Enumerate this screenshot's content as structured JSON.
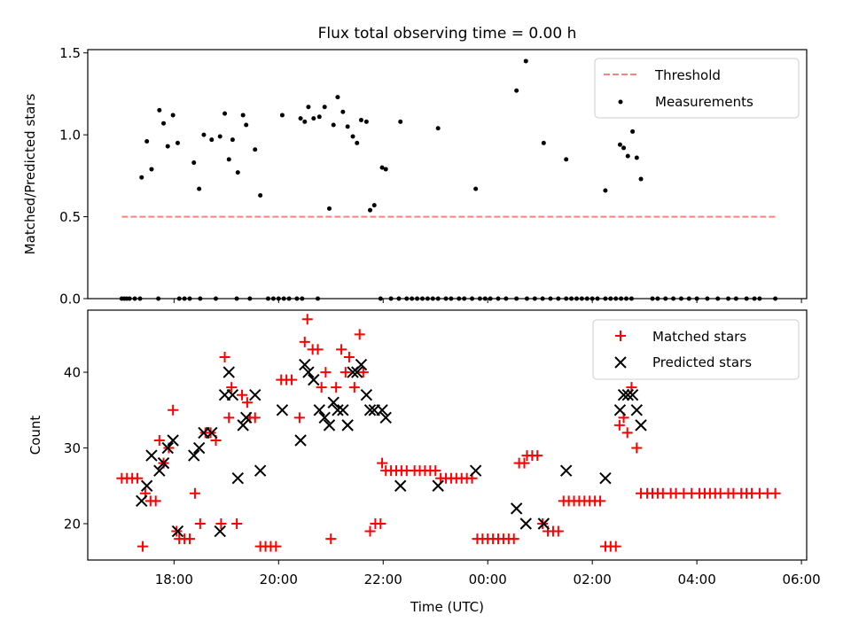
{
  "colors": {
    "threshold": "#ff7f7f",
    "measurements": "#000000",
    "matched": "#ff0000",
    "predicted": "#000000"
  },
  "chart_data": [
    {
      "type": "scatter",
      "title": "Flux total observing time = 0.00 h",
      "xlabel": "",
      "ylabel": "Matched/Predicted stars",
      "xlim": [
        16.35,
        30.1
      ],
      "ylim": [
        0,
        1.52
      ],
      "yticks": [
        0,
        0.5,
        1.0,
        1.5
      ],
      "ytick_labels": [
        "0.0",
        "0.5",
        "1.0",
        "1.5"
      ],
      "legend": {
        "position": "upper-right",
        "threshold_label": "Threshold",
        "measurements_label": "Measurements"
      },
      "threshold": {
        "value": 0.5,
        "x": [
          17.0,
          29.5
        ]
      },
      "measurements": [
        [
          17.0,
          0
        ],
        [
          17.05,
          0
        ],
        [
          17.1,
          0
        ],
        [
          17.15,
          0
        ],
        [
          17.25,
          0
        ],
        [
          17.35,
          0
        ],
        [
          17.7,
          0
        ],
        [
          18.1,
          0
        ],
        [
          18.2,
          0
        ],
        [
          18.3,
          0
        ],
        [
          18.5,
          0
        ],
        [
          18.8,
          0
        ],
        [
          19.2,
          0
        ],
        [
          19.45,
          0
        ],
        [
          19.8,
          0
        ],
        [
          19.9,
          0
        ],
        [
          20.0,
          0
        ],
        [
          20.1,
          0
        ],
        [
          20.2,
          0
        ],
        [
          20.35,
          0
        ],
        [
          20.45,
          0
        ],
        [
          20.75,
          0
        ],
        [
          21.95,
          0
        ],
        [
          22.15,
          0
        ],
        [
          22.3,
          0
        ],
        [
          22.45,
          0
        ],
        [
          22.55,
          0
        ],
        [
          22.65,
          0
        ],
        [
          22.75,
          0
        ],
        [
          22.85,
          0
        ],
        [
          22.95,
          0
        ],
        [
          23.05,
          0
        ],
        [
          23.2,
          0
        ],
        [
          23.3,
          0
        ],
        [
          23.45,
          0
        ],
        [
          23.55,
          0
        ],
        [
          23.7,
          0
        ],
        [
          23.85,
          0
        ],
        [
          23.95,
          0
        ],
        [
          24.05,
          0
        ],
        [
          24.2,
          0
        ],
        [
          24.35,
          0
        ],
        [
          24.55,
          0
        ],
        [
          24.75,
          0
        ],
        [
          24.9,
          0
        ],
        [
          25.05,
          0
        ],
        [
          25.2,
          0
        ],
        [
          25.35,
          0
        ],
        [
          25.5,
          0
        ],
        [
          25.6,
          0
        ],
        [
          25.7,
          0
        ],
        [
          25.8,
          0
        ],
        [
          25.9,
          0
        ],
        [
          26.0,
          0
        ],
        [
          26.1,
          0
        ],
        [
          26.25,
          0
        ],
        [
          26.35,
          0
        ],
        [
          26.45,
          0
        ],
        [
          26.55,
          0
        ],
        [
          26.65,
          0
        ],
        [
          26.75,
          0
        ],
        [
          27.15,
          0
        ],
        [
          27.25,
          0
        ],
        [
          27.4,
          0
        ],
        [
          27.55,
          0
        ],
        [
          27.7,
          0
        ],
        [
          27.85,
          0
        ],
        [
          28.0,
          0
        ],
        [
          28.2,
          0
        ],
        [
          28.4,
          0
        ],
        [
          28.6,
          0
        ],
        [
          28.75,
          0
        ],
        [
          28.95,
          0
        ],
        [
          29.1,
          0
        ],
        [
          29.2,
          0
        ],
        [
          29.5,
          0
        ],
        [
          17.38,
          0.74
        ],
        [
          17.48,
          0.96
        ],
        [
          17.57,
          0.79
        ],
        [
          17.72,
          1.15
        ],
        [
          17.8,
          1.07
        ],
        [
          17.88,
          0.93
        ],
        [
          17.98,
          1.12
        ],
        [
          18.07,
          0.95
        ],
        [
          18.38,
          0.83
        ],
        [
          18.48,
          0.67
        ],
        [
          18.57,
          1.0
        ],
        [
          18.72,
          0.97
        ],
        [
          18.88,
          0.99
        ],
        [
          18.97,
          1.13
        ],
        [
          19.05,
          0.85
        ],
        [
          19.12,
          0.97
        ],
        [
          19.22,
          0.77
        ],
        [
          19.32,
          1.12
        ],
        [
          19.38,
          1.06
        ],
        [
          19.55,
          0.91
        ],
        [
          19.65,
          0.63
        ],
        [
          20.07,
          1.12
        ],
        [
          20.42,
          1.1
        ],
        [
          20.5,
          1.08
        ],
        [
          20.57,
          1.17
        ],
        [
          20.67,
          1.1
        ],
        [
          20.78,
          1.11
        ],
        [
          20.88,
          1.17
        ],
        [
          20.97,
          0.55
        ],
        [
          21.05,
          1.06
        ],
        [
          21.13,
          1.23
        ],
        [
          21.23,
          1.14
        ],
        [
          21.32,
          1.05
        ],
        [
          21.42,
          0.99
        ],
        [
          21.5,
          0.95
        ],
        [
          21.58,
          1.09
        ],
        [
          21.68,
          1.08
        ],
        [
          21.75,
          0.54
        ],
        [
          21.83,
          0.57
        ],
        [
          21.98,
          0.8
        ],
        [
          22.05,
          0.79
        ],
        [
          22.33,
          1.08
        ],
        [
          23.05,
          1.04
        ],
        [
          23.77,
          0.67
        ],
        [
          24.55,
          1.27
        ],
        [
          24.73,
          1.45
        ],
        [
          25.07,
          0.95
        ],
        [
          25.5,
          0.85
        ],
        [
          26.25,
          0.66
        ],
        [
          26.53,
          0.94
        ],
        [
          26.6,
          0.92
        ],
        [
          26.68,
          0.87
        ],
        [
          26.77,
          1.02
        ],
        [
          26.85,
          0.86
        ],
        [
          26.93,
          0.73
        ]
      ]
    },
    {
      "type": "scatter",
      "title": "",
      "xlabel": "Time (UTC)",
      "ylabel": "Count",
      "xlim": [
        16.35,
        30.1
      ],
      "ylim": [
        15.2,
        48.2
      ],
      "yticks": [
        20,
        30,
        40
      ],
      "ytick_labels": [
        "20",
        "30",
        "40"
      ],
      "xticks": [
        18,
        20,
        22,
        24,
        26,
        28,
        30
      ],
      "xtick_labels": [
        "18:00",
        "20:00",
        "22:00",
        "00:00",
        "02:00",
        "04:00",
        "06:00"
      ],
      "legend": {
        "position": "upper-right",
        "matched_label": "Matched stars",
        "predicted_label": "Predicted stars"
      },
      "matched": [
        [
          17.0,
          26
        ],
        [
          17.1,
          26
        ],
        [
          17.2,
          26
        ],
        [
          17.3,
          26
        ],
        [
          17.4,
          17
        ],
        [
          17.45,
          24
        ],
        [
          17.55,
          23
        ],
        [
          17.65,
          23
        ],
        [
          17.72,
          31
        ],
        [
          17.8,
          28
        ],
        [
          17.9,
          30
        ],
        [
          17.98,
          35
        ],
        [
          18.05,
          19
        ],
        [
          18.1,
          18
        ],
        [
          18.2,
          18
        ],
        [
          18.3,
          18
        ],
        [
          18.4,
          24
        ],
        [
          18.5,
          20
        ],
        [
          18.6,
          32
        ],
        [
          18.7,
          32
        ],
        [
          18.8,
          31
        ],
        [
          18.9,
          20
        ],
        [
          18.97,
          42
        ],
        [
          19.05,
          34
        ],
        [
          19.1,
          38
        ],
        [
          19.2,
          20
        ],
        [
          19.3,
          37
        ],
        [
          19.4,
          36
        ],
        [
          19.45,
          34
        ],
        [
          19.55,
          34
        ],
        [
          19.65,
          17
        ],
        [
          19.75,
          17
        ],
        [
          19.85,
          17
        ],
        [
          19.95,
          17
        ],
        [
          20.05,
          39
        ],
        [
          20.15,
          39
        ],
        [
          20.25,
          39
        ],
        [
          20.4,
          34
        ],
        [
          20.5,
          44
        ],
        [
          20.55,
          47
        ],
        [
          20.65,
          43
        ],
        [
          20.75,
          43
        ],
        [
          20.82,
          38
        ],
        [
          20.9,
          40
        ],
        [
          21.0,
          18
        ],
        [
          21.1,
          38
        ],
        [
          21.2,
          43
        ],
        [
          21.28,
          40
        ],
        [
          21.35,
          42
        ],
        [
          21.45,
          38
        ],
        [
          21.55,
          45
        ],
        [
          21.62,
          40
        ],
        [
          21.75,
          19
        ],
        [
          21.85,
          20
        ],
        [
          21.95,
          20
        ],
        [
          21.98,
          28
        ],
        [
          22.05,
          27
        ],
        [
          22.15,
          27
        ],
        [
          22.25,
          27
        ],
        [
          22.35,
          27
        ],
        [
          22.45,
          27
        ],
        [
          22.6,
          27
        ],
        [
          22.7,
          27
        ],
        [
          22.8,
          27
        ],
        [
          22.9,
          27
        ],
        [
          23.0,
          27
        ],
        [
          23.1,
          26
        ],
        [
          23.2,
          26
        ],
        [
          23.3,
          26
        ],
        [
          23.4,
          26
        ],
        [
          23.5,
          26
        ],
        [
          23.6,
          26
        ],
        [
          23.7,
          26
        ],
        [
          23.8,
          18
        ],
        [
          23.9,
          18
        ],
        [
          24.0,
          18
        ],
        [
          24.1,
          18
        ],
        [
          24.2,
          18
        ],
        [
          24.3,
          18
        ],
        [
          24.4,
          18
        ],
        [
          24.5,
          18
        ],
        [
          24.6,
          28
        ],
        [
          24.7,
          28
        ],
        [
          24.75,
          29
        ],
        [
          24.85,
          29
        ],
        [
          24.95,
          29
        ],
        [
          25.05,
          20
        ],
        [
          25.15,
          19
        ],
        [
          25.25,
          19
        ],
        [
          25.35,
          19
        ],
        [
          25.45,
          23
        ],
        [
          25.55,
          23
        ],
        [
          25.65,
          23
        ],
        [
          25.75,
          23
        ],
        [
          25.85,
          23
        ],
        [
          25.95,
          23
        ],
        [
          26.05,
          23
        ],
        [
          26.15,
          23
        ],
        [
          26.25,
          17
        ],
        [
          26.35,
          17
        ],
        [
          26.45,
          17
        ],
        [
          26.52,
          33
        ],
        [
          26.6,
          34
        ],
        [
          26.67,
          32
        ],
        [
          26.75,
          38
        ],
        [
          26.85,
          30
        ],
        [
          26.93,
          24
        ],
        [
          27.05,
          24
        ],
        [
          27.15,
          24
        ],
        [
          27.25,
          24
        ],
        [
          27.35,
          24
        ],
        [
          27.5,
          24
        ],
        [
          27.6,
          24
        ],
        [
          27.75,
          24
        ],
        [
          27.9,
          24
        ],
        [
          28.05,
          24
        ],
        [
          28.15,
          24
        ],
        [
          28.25,
          24
        ],
        [
          28.35,
          24
        ],
        [
          28.45,
          24
        ],
        [
          28.6,
          24
        ],
        [
          28.7,
          24
        ],
        [
          28.85,
          24
        ],
        [
          28.95,
          24
        ],
        [
          29.05,
          24
        ],
        [
          29.2,
          24
        ],
        [
          29.35,
          24
        ],
        [
          29.5,
          24
        ]
      ],
      "predicted": [
        [
          17.38,
          23
        ],
        [
          17.48,
          25
        ],
        [
          17.57,
          29
        ],
        [
          17.72,
          27
        ],
        [
          17.8,
          28
        ],
        [
          17.88,
          30
        ],
        [
          17.98,
          31
        ],
        [
          18.07,
          19
        ],
        [
          18.38,
          29
        ],
        [
          18.48,
          30
        ],
        [
          18.57,
          32
        ],
        [
          18.72,
          32
        ],
        [
          18.88,
          19
        ],
        [
          18.97,
          37
        ],
        [
          19.05,
          40
        ],
        [
          19.12,
          37
        ],
        [
          19.22,
          26
        ],
        [
          19.32,
          33
        ],
        [
          19.38,
          34
        ],
        [
          19.55,
          37
        ],
        [
          19.65,
          27
        ],
        [
          20.07,
          35
        ],
        [
          20.42,
          31
        ],
        [
          20.5,
          41
        ],
        [
          20.57,
          40
        ],
        [
          20.67,
          39
        ],
        [
          20.78,
          35
        ],
        [
          20.88,
          34
        ],
        [
          20.97,
          33
        ],
        [
          21.05,
          36
        ],
        [
          21.13,
          35
        ],
        [
          21.23,
          35
        ],
        [
          21.32,
          33
        ],
        [
          21.42,
          40
        ],
        [
          21.5,
          40
        ],
        [
          21.58,
          41
        ],
        [
          21.68,
          37
        ],
        [
          21.75,
          35
        ],
        [
          21.83,
          35
        ],
        [
          21.98,
          35
        ],
        [
          22.05,
          34
        ],
        [
          22.33,
          25
        ],
        [
          23.05,
          25
        ],
        [
          23.77,
          27
        ],
        [
          24.55,
          22
        ],
        [
          24.73,
          20
        ],
        [
          25.07,
          20
        ],
        [
          25.5,
          27
        ],
        [
          26.25,
          26
        ],
        [
          26.53,
          35
        ],
        [
          26.6,
          37
        ],
        [
          26.68,
          37
        ],
        [
          26.77,
          37
        ],
        [
          26.85,
          35
        ],
        [
          26.93,
          33
        ]
      ]
    }
  ]
}
